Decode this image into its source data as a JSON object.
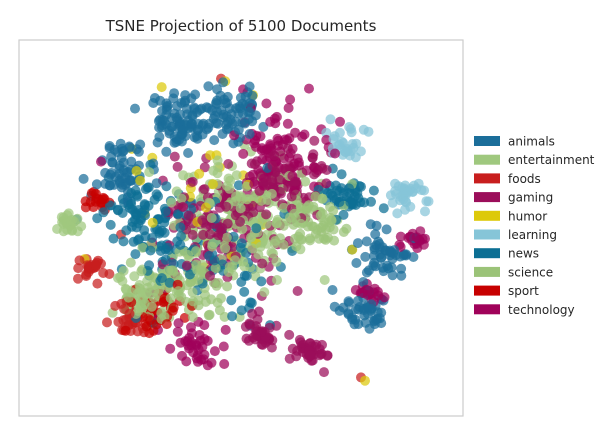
{
  "chart_data": {
    "type": "scatter",
    "title": "TSNE Projection of 5100 Documents",
    "xlabel": "",
    "ylabel": "",
    "grid": false,
    "axes_ticks": false,
    "legend_position": "right",
    "series": [
      {
        "name": "animals",
        "color": "#1b6e9a"
      },
      {
        "name": "entertainment",
        "color": "#9fc87e"
      },
      {
        "name": "foods",
        "color": "#c81e1e"
      },
      {
        "name": "gaming",
        "color": "#9b0e5a"
      },
      {
        "name": "humor",
        "color": "#ddc90a"
      },
      {
        "name": "learning",
        "color": "#86c5d8"
      },
      {
        "name": "news",
        "color": "#0c6f94"
      },
      {
        "name": "science",
        "color": "#9bc378"
      },
      {
        "name": "sport",
        "color": "#c70000"
      },
      {
        "name": "technology",
        "color": "#a0025a"
      }
    ],
    "clusters": [
      {
        "series": 0,
        "cx": 0.35,
        "cy": 0.82,
        "r": 0.08,
        "n": 90
      },
      {
        "series": 0,
        "cx": 0.2,
        "cy": 0.68,
        "r": 0.07,
        "n": 60
      },
      {
        "series": 0,
        "cx": 0.48,
        "cy": 0.85,
        "r": 0.07,
        "n": 60
      },
      {
        "series": 0,
        "cx": 0.86,
        "cy": 0.42,
        "r": 0.06,
        "n": 50
      },
      {
        "series": 0,
        "cx": 0.8,
        "cy": 0.25,
        "r": 0.06,
        "n": 45
      },
      {
        "series": 1,
        "cx": 0.5,
        "cy": 0.52,
        "r": 0.16,
        "n": 200
      },
      {
        "series": 1,
        "cx": 0.07,
        "cy": 0.52,
        "r": 0.03,
        "n": 25
      },
      {
        "series": 1,
        "cx": 0.25,
        "cy": 0.3,
        "r": 0.07,
        "n": 60
      },
      {
        "series": 2,
        "cx": 0.13,
        "cy": 0.38,
        "r": 0.03,
        "n": 25
      },
      {
        "series": 2,
        "cx": 0.22,
        "cy": 0.22,
        "r": 0.05,
        "n": 30
      },
      {
        "series": 3,
        "cx": 0.45,
        "cy": 0.5,
        "r": 0.15,
        "n": 160
      },
      {
        "series": 3,
        "cx": 0.6,
        "cy": 0.65,
        "r": 0.1,
        "n": 80
      },
      {
        "series": 3,
        "cx": 0.55,
        "cy": 0.18,
        "r": 0.04,
        "n": 40
      },
      {
        "series": 3,
        "cx": 0.67,
        "cy": 0.13,
        "r": 0.04,
        "n": 40
      },
      {
        "series": 4,
        "cx": 0.4,
        "cy": 0.6,
        "r": 0.22,
        "n": 30
      },
      {
        "series": 5,
        "cx": 0.92,
        "cy": 0.6,
        "r": 0.04,
        "n": 35
      },
      {
        "series": 5,
        "cx": 0.76,
        "cy": 0.76,
        "r": 0.05,
        "n": 30
      },
      {
        "series": 6,
        "cx": 0.4,
        "cy": 0.42,
        "r": 0.18,
        "n": 120
      },
      {
        "series": 6,
        "cx": 0.25,
        "cy": 0.55,
        "r": 0.09,
        "n": 60
      },
      {
        "series": 6,
        "cx": 0.77,
        "cy": 0.6,
        "r": 0.06,
        "n": 50
      },
      {
        "series": 7,
        "cx": 0.36,
        "cy": 0.33,
        "r": 0.12,
        "n": 100
      },
      {
        "series": 7,
        "cx": 0.68,
        "cy": 0.52,
        "r": 0.09,
        "n": 70
      },
      {
        "series": 8,
        "cx": 0.3,
        "cy": 0.25,
        "r": 0.08,
        "n": 40
      },
      {
        "series": 8,
        "cx": 0.14,
        "cy": 0.58,
        "r": 0.03,
        "n": 18
      },
      {
        "series": 9,
        "cx": 0.6,
        "cy": 0.72,
        "r": 0.11,
        "n": 90
      },
      {
        "series": 9,
        "cx": 0.82,
        "cy": 0.3,
        "r": 0.03,
        "n": 25
      },
      {
        "series": 9,
        "cx": 0.93,
        "cy": 0.46,
        "r": 0.03,
        "n": 20
      },
      {
        "series": 9,
        "cx": 0.38,
        "cy": 0.15,
        "r": 0.06,
        "n": 40
      }
    ],
    "outliers": [
      {
        "series": 2,
        "x": 0.45,
        "y": 0.95
      },
      {
        "series": 4,
        "x": 0.53,
        "y": 0.9
      },
      {
        "series": 9,
        "x": 0.67,
        "y": 0.92
      },
      {
        "series": 5,
        "x": 0.96,
        "y": 0.55
      },
      {
        "series": 2,
        "x": 0.8,
        "y": 0.05
      },
      {
        "series": 4,
        "x": 0.81,
        "y": 0.04
      },
      {
        "series": 2,
        "x": 0.2,
        "y": 0.48
      },
      {
        "series": 9,
        "x": 0.15,
        "y": 0.7
      }
    ]
  }
}
